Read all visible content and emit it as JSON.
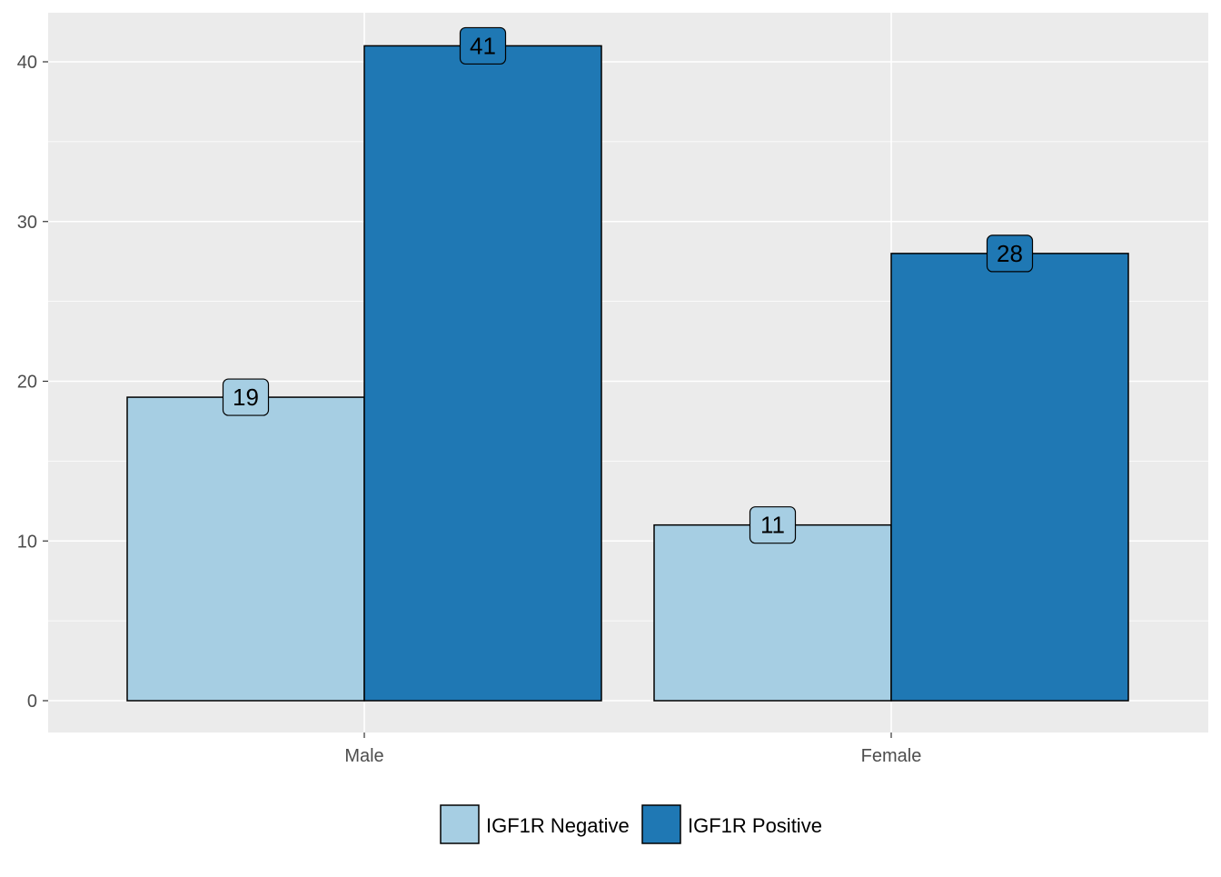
{
  "chart_data": {
    "type": "bar",
    "title": "",
    "xlabel": "",
    "ylabel": "",
    "categories": [
      "Male",
      "Female"
    ],
    "series": [
      {
        "name": "IGF1R Negative",
        "color": "#A6CEE3",
        "values": [
          19,
          11
        ]
      },
      {
        "name": "IGF1R Positive",
        "color": "#1F78B4",
        "values": [
          41,
          28
        ]
      }
    ],
    "ylim": [
      0,
      43
    ],
    "yticks": [
      0,
      10,
      20,
      30,
      40
    ],
    "y_tick_labels": [
      "0",
      "10",
      "20",
      "30",
      "40"
    ],
    "grid": true,
    "legend_position": "bottom",
    "panel_background": "#EBEBEB",
    "data_labels": true
  }
}
